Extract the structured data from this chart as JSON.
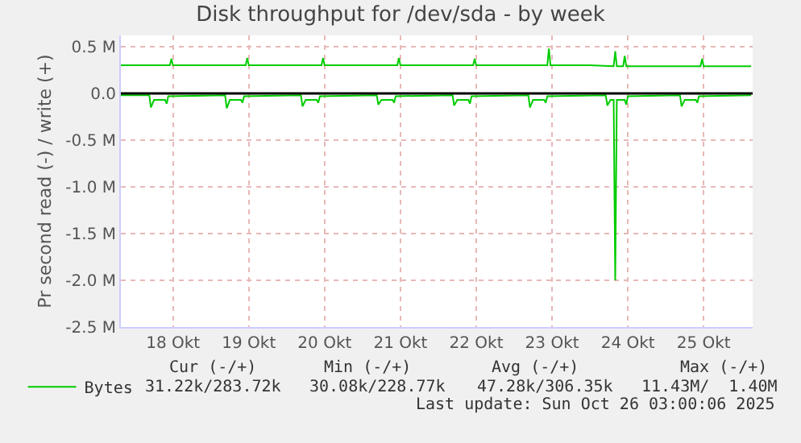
{
  "chart_data": {
    "type": "line",
    "title": "Disk throughput for /dev/sda - by week",
    "ylabel": "Pr second read (-) / write (+)",
    "xlim": [
      "2025-10-17T19:30",
      "2025-10-26T03:30"
    ],
    "xticks": [
      {
        "value": "2025-10-18T12:00",
        "label": "18 Okt"
      },
      {
        "value": "2025-10-19T12:00",
        "label": "19 Okt"
      },
      {
        "value": "2025-10-20T12:00",
        "label": "20 Okt"
      },
      {
        "value": "2025-10-21T12:00",
        "label": "21 Okt"
      },
      {
        "value": "2025-10-22T12:00",
        "label": "22 Okt"
      },
      {
        "value": "2025-10-23T12:00",
        "label": "23 Okt"
      },
      {
        "value": "2025-10-24T12:00",
        "label": "24 Okt"
      },
      {
        "value": "2025-10-25T12:00",
        "label": "25 Okt"
      }
    ],
    "ylim": [
      -2500000,
      620000
    ],
    "yticks": [
      {
        "value": 500000,
        "label": "0.5 M"
      },
      {
        "value": 0,
        "label": "0.0"
      },
      {
        "value": -500000,
        "label": "-0.5 M"
      },
      {
        "value": -1000000,
        "label": "-1.0 M"
      },
      {
        "value": -1500000,
        "label": "-1.5 M"
      },
      {
        "value": -2000000,
        "label": "-2.0 M"
      },
      {
        "value": -2500000,
        "label": "-2.5 M"
      }
    ],
    "grid": true,
    "legend": "bottom left",
    "marker": "none",
    "line_style": "solid",
    "ref_lines": [
      {
        "axis": "y",
        "value": 0,
        "color": "#000000"
      }
    ],
    "annotations": [
      "Cur (-/+)",
      "Min (-/+)",
      "Avg (-/+)",
      "Max (-/+)",
      "31.22k/283.72k",
      "30.08k/228.77k",
      "47.28k/306.35k",
      "11.43M/  1.40M",
      "Last update: Sun Oct 26 03:00:06 2025"
    ],
    "series": [
      {
        "name": "Bytes",
        "color": "#00cc00",
        "x": [
          "2025-10-17T19:30",
          "2025-10-18T00:00",
          "2025-10-18T11:00",
          "2025-10-18T11:30",
          "2025-10-18T12:00",
          "2025-10-18T18:00",
          "2025-10-19T00:00",
          "2025-10-19T11:00",
          "2025-10-19T11:30",
          "2025-10-19T12:00",
          "2025-10-19T18:00",
          "2025-10-20T00:00",
          "2025-10-20T11:00",
          "2025-10-20T11:30",
          "2025-10-20T12:00",
          "2025-10-20T18:00",
          "2025-10-21T00:00",
          "2025-10-21T11:00",
          "2025-10-21T11:30",
          "2025-10-21T12:00",
          "2025-10-21T18:00",
          "2025-10-22T00:00",
          "2025-10-22T11:00",
          "2025-10-22T11:30",
          "2025-10-22T12:00",
          "2025-10-22T18:00",
          "2025-10-23T00:00",
          "2025-10-23T10:30",
          "2025-10-23T11:00",
          "2025-10-23T11:30",
          "2025-10-23T18:00",
          "2025-10-24T00:00",
          "2025-10-24T07:30",
          "2025-10-24T08:00",
          "2025-10-24T08:30",
          "2025-10-24T10:30",
          "2025-10-24T11:00",
          "2025-10-24T11:30",
          "2025-10-24T18:00",
          "2025-10-25T00:00",
          "2025-10-25T11:00",
          "2025-10-25T11:30",
          "2025-10-25T12:00",
          "2025-10-25T18:00",
          "2025-10-26T03:00"
        ],
        "values": [
          300000,
          300000,
          300000,
          370000,
          300000,
          300000,
          300000,
          300000,
          380000,
          300000,
          300000,
          300000,
          300000,
          380000,
          300000,
          300000,
          300000,
          300000,
          380000,
          300000,
          300000,
          300000,
          300000,
          370000,
          300000,
          300000,
          300000,
          300000,
          480000,
          300000,
          300000,
          300000,
          290000,
          450000,
          290000,
          290000,
          400000,
          290000,
          290000,
          290000,
          290000,
          370000,
          290000,
          290000,
          290000
        ]
      },
      {
        "color": "#00cc00",
        "x": [
          "2025-10-17T19:30",
          "2025-10-18T04:30",
          "2025-10-18T05:00",
          "2025-10-18T06:00",
          "2025-10-18T09:30",
          "2025-10-18T10:00",
          "2025-10-18T10:30",
          "2025-10-19T04:30",
          "2025-10-19T05:00",
          "2025-10-19T06:00",
          "2025-10-19T09:30",
          "2025-10-19T10:00",
          "2025-10-19T10:30",
          "2025-10-20T04:30",
          "2025-10-20T05:00",
          "2025-10-20T06:00",
          "2025-10-20T09:30",
          "2025-10-20T10:00",
          "2025-10-20T10:30",
          "2025-10-21T04:30",
          "2025-10-21T05:00",
          "2025-10-21T06:00",
          "2025-10-21T09:30",
          "2025-10-21T10:00",
          "2025-10-21T10:30",
          "2025-10-22T04:30",
          "2025-10-22T05:00",
          "2025-10-22T06:00",
          "2025-10-22T09:30",
          "2025-10-22T10:00",
          "2025-10-22T10:30",
          "2025-10-23T04:30",
          "2025-10-23T05:00",
          "2025-10-23T06:00",
          "2025-10-23T09:30",
          "2025-10-23T10:00",
          "2025-10-23T10:30",
          "2025-10-24T05:00",
          "2025-10-24T05:30",
          "2025-10-24T06:30",
          "2025-10-24T07:30",
          "2025-10-24T08:00",
          "2025-10-24T08:30",
          "2025-10-24T11:00",
          "2025-10-24T11:30",
          "2025-10-24T12:00",
          "2025-10-25T04:30",
          "2025-10-25T05:00",
          "2025-10-25T06:00",
          "2025-10-25T09:30",
          "2025-10-25T10:00",
          "2025-10-25T10:30",
          "2025-10-26T03:00"
        ],
        "values": [
          -20000,
          -20000,
          -150000,
          -70000,
          -70000,
          -110000,
          -30000,
          -20000,
          -160000,
          -70000,
          -70000,
          -100000,
          -30000,
          -20000,
          -140000,
          -70000,
          -70000,
          -100000,
          -30000,
          -20000,
          -120000,
          -70000,
          -70000,
          -100000,
          -30000,
          -20000,
          -130000,
          -70000,
          -70000,
          -110000,
          -30000,
          -20000,
          -150000,
          -70000,
          -70000,
          -100000,
          -30000,
          -20000,
          -130000,
          -70000,
          -70000,
          -2000000,
          -70000,
          -70000,
          -120000,
          -30000,
          -20000,
          -140000,
          -70000,
          -70000,
          -100000,
          -30000,
          -20000
        ]
      }
    ]
  }
}
